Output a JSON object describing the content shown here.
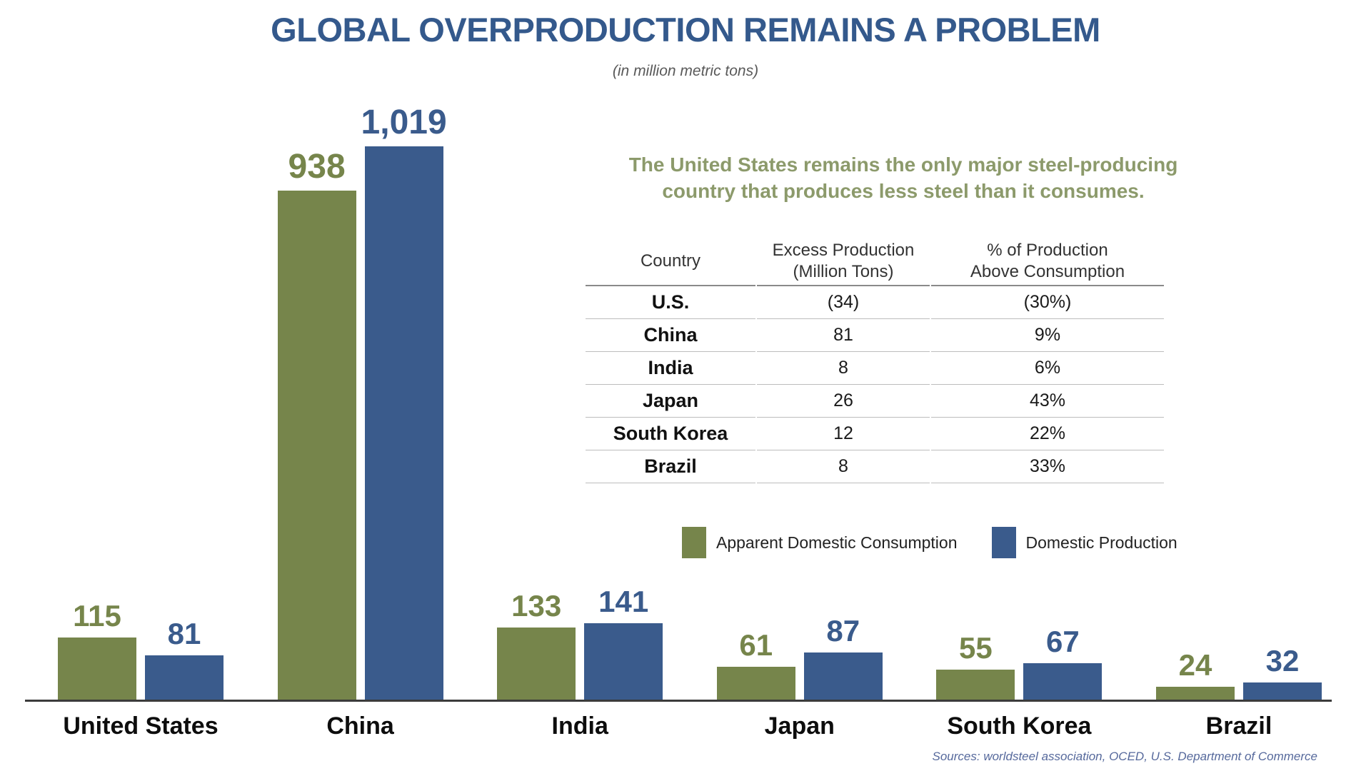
{
  "title": "GLOBAL OVERPRODUCTION REMAINS A PROBLEM",
  "subtitle": "(in million metric tons)",
  "callout": {
    "line1": "The United States remains the only major steel-producing",
    "line2": "country that produces less steel than it consumes."
  },
  "table": {
    "headers": {
      "country": "Country",
      "excess": "Excess Production\n(Million Tons)",
      "pct": "% of Production\nAbove Consumption"
    },
    "rows": [
      {
        "country": "U.S.",
        "excess": "(34)",
        "pct": "(30%)"
      },
      {
        "country": "China",
        "excess": "81",
        "pct": "9%"
      },
      {
        "country": "India",
        "excess": "8",
        "pct": "6%"
      },
      {
        "country": "Japan",
        "excess": "26",
        "pct": "43%"
      },
      {
        "country": "South Korea",
        "excess": "12",
        "pct": "22%"
      },
      {
        "country": "Brazil",
        "excess": "8",
        "pct": "33%"
      }
    ]
  },
  "legend": [
    {
      "label": "Apparent Domestic Consumption",
      "color": "#76854B"
    },
    {
      "label": "Domestic Production",
      "color": "#3A5B8C"
    }
  ],
  "source": "Sources: worldsteel association, OCED, U.S. Department of Commerce",
  "colors": {
    "consumption_green": "#76854B",
    "production_blue": "#3A5B8C",
    "title_blue": "#34598C",
    "callout_green": "#8C9A6B"
  },
  "chart_data": {
    "type": "bar",
    "title": "GLOBAL OVERPRODUCTION REMAINS A PROBLEM",
    "subtitle": "(in million metric tons)",
    "unit": "million metric tons",
    "categories": [
      "United States",
      "China",
      "India",
      "Japan",
      "South Korea",
      "Brazil"
    ],
    "series": [
      {
        "name": "Apparent Domestic Consumption",
        "color": "#76854B",
        "values": [
          115,
          938,
          133,
          61,
          55,
          24
        ],
        "labels": [
          "115",
          "938",
          "133",
          "61",
          "55",
          "24"
        ]
      },
      {
        "name": "Domestic Production",
        "color": "#3A5B8C",
        "values": [
          81,
          1019,
          141,
          87,
          67,
          32
        ],
        "labels": [
          "81",
          "1,019",
          "141",
          "87",
          "67",
          "32"
        ]
      }
    ],
    "ylim": [
      0,
      1100
    ],
    "grid": false,
    "axis_labels_shown": false,
    "legend_position": "center-right"
  }
}
